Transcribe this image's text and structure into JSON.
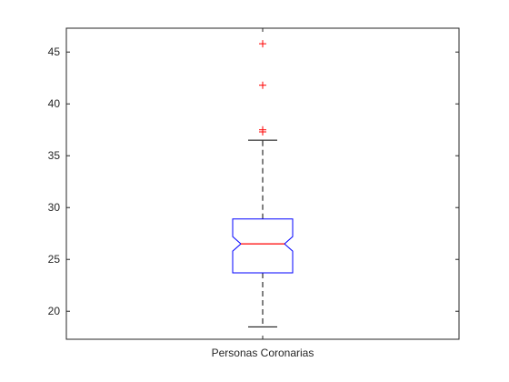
{
  "chart_data": {
    "type": "boxplot",
    "title": "",
    "xlabel": "",
    "ylabel": "",
    "ylim": [
      17.3,
      47.3
    ],
    "yticks": [
      20,
      25,
      30,
      35,
      40,
      45
    ],
    "ytick_labels": [
      "20",
      "25",
      "30",
      "35",
      "40",
      "45"
    ],
    "grid": false,
    "notched": true,
    "categories": [
      "Personas Coronarias"
    ],
    "boxes": [
      {
        "category": "Personas Coronarias",
        "whisker_low": 18.5,
        "q1": 23.7,
        "notch_low": 25.8,
        "median": 26.5,
        "notch_high": 27.2,
        "q3": 28.9,
        "whisker_high": 36.5,
        "outliers": [
          37.3,
          37.5,
          41.8,
          45.8
        ]
      }
    ],
    "colors": {
      "box": "#0000ff",
      "median": "#ff0000",
      "whisker": "#000000",
      "outlier": "#ff0000",
      "axes": "#262626"
    }
  }
}
